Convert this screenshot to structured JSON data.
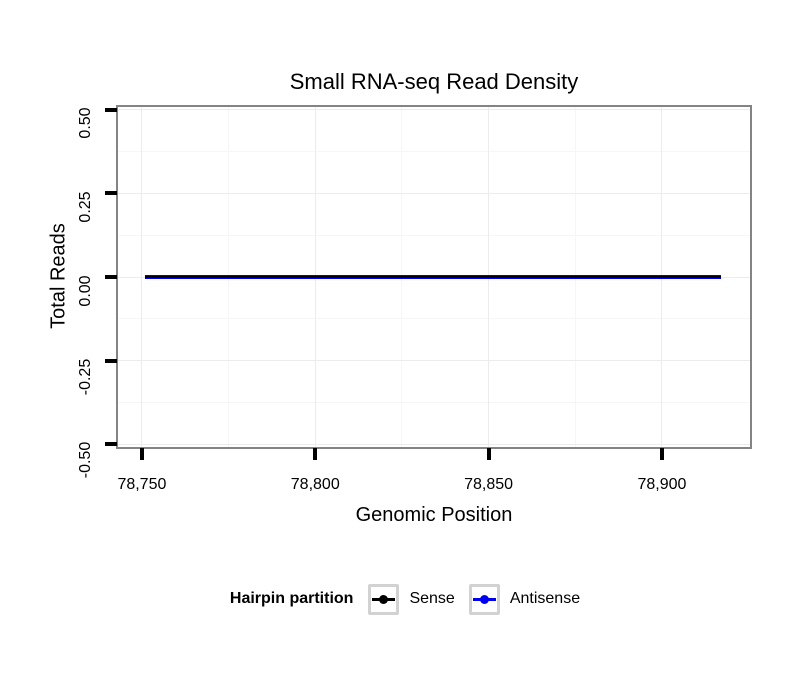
{
  "title": "Small RNA-seq Read Density",
  "colors": {
    "background": "#ffffff",
    "panel_border": "#848484",
    "grid_major": "#ececec",
    "grid_minor": "#f6f6f6",
    "tick": "#000000",
    "text": "#000000",
    "legend_key_border": "#d2d2d2",
    "sense": "#000000",
    "antisense": "#0000f0"
  },
  "chart_data": {
    "type": "line",
    "title": "Small RNA-seq Read Density",
    "xlabel": "Genomic Position",
    "ylabel": "Total Reads",
    "grid": true,
    "xlim": [
      78743.1,
      78925.4
    ],
    "ylim": [
      -0.5075,
      0.5075
    ],
    "x_ticks": [
      78750,
      78800,
      78850,
      78900
    ],
    "x_tick_labels": [
      "78,750",
      "78,800",
      "78,850",
      "78,900"
    ],
    "y_ticks": [
      0.5,
      0.25,
      0,
      -0.25,
      -0.5
    ],
    "y_tick_labels": [
      "0.50",
      "0.25",
      "0.00",
      "-0.25",
      "-0.50"
    ],
    "series": [
      {
        "name": "Sense",
        "color": "#000000",
        "x": [
          78751,
          78917
        ],
        "y": [
          0,
          0
        ]
      },
      {
        "name": "Antisense",
        "color": "#0000f0",
        "x": [
          78751,
          78917
        ],
        "y": [
          0,
          0
        ]
      }
    ],
    "legend": {
      "title": "Hairpin partition",
      "position": "bottom",
      "entries": [
        {
          "label": "Sense",
          "color": "#000000"
        },
        {
          "label": "Antisense",
          "color": "#0000f0"
        }
      ]
    }
  }
}
